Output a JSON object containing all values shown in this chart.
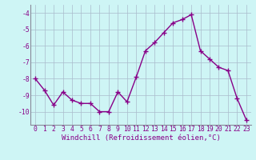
{
  "x": [
    0,
    1,
    2,
    3,
    4,
    5,
    6,
    7,
    8,
    9,
    10,
    11,
    12,
    13,
    14,
    15,
    16,
    17,
    18,
    19,
    20,
    21,
    22,
    23
  ],
  "y": [
    -8.0,
    -8.7,
    -9.6,
    -8.8,
    -9.3,
    -9.5,
    -9.5,
    -10.0,
    -10.0,
    -8.8,
    -9.4,
    -7.9,
    -6.3,
    -5.8,
    -5.2,
    -4.6,
    -4.4,
    -4.1,
    -6.3,
    -6.8,
    -7.3,
    -7.5,
    -9.2,
    -10.5
  ],
  "line_color": "#880088",
  "marker": "+",
  "marker_size": 4,
  "line_width": 1.0,
  "bg_color": "#cef5f5",
  "grid_color": "#aabbcc",
  "xlabel": "Windchill (Refroidissement éolien,°C)",
  "xlabel_color": "#880088",
  "xlabel_fontsize": 6.5,
  "tick_color": "#880088",
  "tick_fontsize": 5.8,
  "ylim": [
    -10.8,
    -3.5
  ],
  "yticks": [
    -10,
    -9,
    -8,
    -7,
    -6,
    -5,
    -4
  ],
  "xticks": [
    0,
    1,
    2,
    3,
    4,
    5,
    6,
    7,
    8,
    9,
    10,
    11,
    12,
    13,
    14,
    15,
    16,
    17,
    18,
    19,
    20,
    21,
    22,
    23
  ],
  "spine_color": "#888899"
}
